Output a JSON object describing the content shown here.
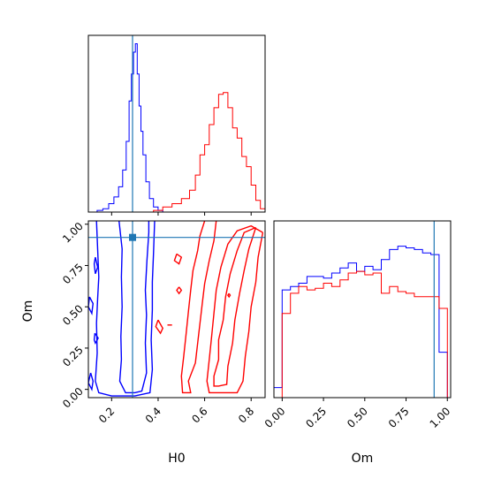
{
  "chart_data": {
    "type": "corner-plot",
    "parameters": [
      "H0",
      "Om"
    ],
    "truth": {
      "H0": 0.29,
      "Om": 0.92,
      "color": "#1f77b4"
    },
    "series_colors": [
      "#0000ff",
      "#ff0000"
    ],
    "axes": {
      "H0": {
        "label": "H0",
        "range": [
          0.1,
          0.86
        ],
        "ticks": [
          "0.2",
          "0.4",
          "0.6",
          "0.8"
        ],
        "tick_values": [
          0.2,
          0.4,
          0.6,
          0.8
        ]
      },
      "Om": {
        "label": "Om",
        "range": [
          -0.05,
          1.02
        ],
        "ticks": [
          "0.00",
          "0.25",
          "0.50",
          "0.75",
          "1.00"
        ],
        "tick_values": [
          0.0,
          0.25,
          0.5,
          0.75,
          1.0
        ]
      }
    },
    "histogram_H0": {
      "series": [
        {
          "color": "#0000ff",
          "bins": [
            {
              "x": 0.15,
              "y": 0.01
            },
            {
              "x": 0.175,
              "y": 0.02
            },
            {
              "x": 0.2,
              "y": 0.05
            },
            {
              "x": 0.22,
              "y": 0.09
            },
            {
              "x": 0.24,
              "y": 0.15
            },
            {
              "x": 0.255,
              "y": 0.25
            },
            {
              "x": 0.27,
              "y": 0.42
            },
            {
              "x": 0.28,
              "y": 0.66
            },
            {
              "x": 0.29,
              "y": 0.82
            },
            {
              "x": 0.298,
              "y": 0.95
            },
            {
              "x": 0.306,
              "y": 1.0
            },
            {
              "x": 0.314,
              "y": 0.82
            },
            {
              "x": 0.322,
              "y": 0.63
            },
            {
              "x": 0.33,
              "y": 0.48
            },
            {
              "x": 0.34,
              "y": 0.34
            },
            {
              "x": 0.355,
              "y": 0.18
            },
            {
              "x": 0.37,
              "y": 0.08
            },
            {
              "x": 0.39,
              "y": 0.03
            },
            {
              "x": 0.41,
              "y": 0.01
            }
          ]
        },
        {
          "color": "#ff0000",
          "bins": [
            {
              "x": 0.4,
              "y": 0.01
            },
            {
              "x": 0.44,
              "y": 0.03
            },
            {
              "x": 0.48,
              "y": 0.05
            },
            {
              "x": 0.52,
              "y": 0.08
            },
            {
              "x": 0.55,
              "y": 0.13
            },
            {
              "x": 0.57,
              "y": 0.22
            },
            {
              "x": 0.59,
              "y": 0.34
            },
            {
              "x": 0.61,
              "y": 0.4
            },
            {
              "x": 0.63,
              "y": 0.52
            },
            {
              "x": 0.65,
              "y": 0.62
            },
            {
              "x": 0.67,
              "y": 0.7
            },
            {
              "x": 0.69,
              "y": 0.71
            },
            {
              "x": 0.71,
              "y": 0.62
            },
            {
              "x": 0.73,
              "y": 0.5
            },
            {
              "x": 0.75,
              "y": 0.44
            },
            {
              "x": 0.77,
              "y": 0.33
            },
            {
              "x": 0.79,
              "y": 0.27
            },
            {
              "x": 0.81,
              "y": 0.16
            },
            {
              "x": 0.83,
              "y": 0.07
            },
            {
              "x": 0.85,
              "y": 0.02
            }
          ]
        }
      ]
    },
    "histogram_Om": {
      "series": [
        {
          "color": "#0000ff",
          "bins": [
            {
              "x": -0.025,
              "y": 0.06
            },
            {
              "x": 0.025,
              "y": 0.64
            },
            {
              "x": 0.075,
              "y": 0.66
            },
            {
              "x": 0.125,
              "y": 0.68
            },
            {
              "x": 0.175,
              "y": 0.72
            },
            {
              "x": 0.225,
              "y": 0.72
            },
            {
              "x": 0.275,
              "y": 0.71
            },
            {
              "x": 0.325,
              "y": 0.74
            },
            {
              "x": 0.375,
              "y": 0.77
            },
            {
              "x": 0.425,
              "y": 0.8
            },
            {
              "x": 0.475,
              "y": 0.75
            },
            {
              "x": 0.525,
              "y": 0.78
            },
            {
              "x": 0.575,
              "y": 0.76
            },
            {
              "x": 0.625,
              "y": 0.82
            },
            {
              "x": 0.675,
              "y": 0.88
            },
            {
              "x": 0.725,
              "y": 0.9
            },
            {
              "x": 0.775,
              "y": 0.89
            },
            {
              "x": 0.825,
              "y": 0.88
            },
            {
              "x": 0.875,
              "y": 0.86
            },
            {
              "x": 0.925,
              "y": 0.85
            },
            {
              "x": 0.975,
              "y": 0.27
            }
          ]
        },
        {
          "color": "#ff0000",
          "bins": [
            {
              "x": 0.025,
              "y": 0.5
            },
            {
              "x": 0.075,
              "y": 0.62
            },
            {
              "x": 0.125,
              "y": 0.66
            },
            {
              "x": 0.175,
              "y": 0.64
            },
            {
              "x": 0.225,
              "y": 0.65
            },
            {
              "x": 0.275,
              "y": 0.68
            },
            {
              "x": 0.325,
              "y": 0.66
            },
            {
              "x": 0.375,
              "y": 0.7
            },
            {
              "x": 0.425,
              "y": 0.74
            },
            {
              "x": 0.475,
              "y": 0.75
            },
            {
              "x": 0.525,
              "y": 0.73
            },
            {
              "x": 0.575,
              "y": 0.74
            },
            {
              "x": 0.625,
              "y": 0.62
            },
            {
              "x": 0.675,
              "y": 0.66
            },
            {
              "x": 0.725,
              "y": 0.63
            },
            {
              "x": 0.775,
              "y": 0.62
            },
            {
              "x": 0.825,
              "y": 0.6
            },
            {
              "x": 0.875,
              "y": 0.6
            },
            {
              "x": 0.925,
              "y": 0.6
            },
            {
              "x": 0.975,
              "y": 0.53
            }
          ]
        }
      ]
    },
    "contours_H0_Om": {
      "series": [
        {
          "color": "#0000ff",
          "levels": [
            [
              [
                0.232,
                1.02
              ],
              [
                0.245,
                0.85
              ],
              [
                0.242,
                0.68
              ],
              [
                0.245,
                0.5
              ],
              [
                0.24,
                0.32
              ],
              [
                0.242,
                0.18
              ],
              [
                0.235,
                0.05
              ],
              [
                0.26,
                -0.02
              ],
              [
                0.3,
                -0.02
              ],
              [
                0.33,
                -0.01
              ],
              [
                0.35,
                0.1
              ],
              [
                0.345,
                0.28
              ],
              [
                0.35,
                0.45
              ],
              [
                0.345,
                0.6
              ],
              [
                0.352,
                0.78
              ],
              [
                0.36,
                0.95
              ],
              [
                0.36,
                1.02
              ]
            ],
            [
              [
                0.135,
                1.02
              ],
              [
                0.14,
                0.85
              ],
              [
                0.145,
                0.68
              ],
              [
                0.14,
                0.55
              ],
              [
                0.135,
                0.4
              ],
              [
                0.138,
                0.22
              ],
              [
                0.13,
                0.05
              ],
              [
                0.145,
                -0.02
              ],
              [
                0.2,
                -0.04
              ],
              [
                0.3,
                -0.04
              ],
              [
                0.365,
                -0.02
              ],
              [
                0.375,
                0.12
              ],
              [
                0.37,
                0.3
              ],
              [
                0.375,
                0.48
              ],
              [
                0.375,
                0.65
              ],
              [
                0.38,
                0.82
              ],
              [
                0.385,
                1.02
              ]
            ]
          ],
          "islands": [
            [
              [
                0.105,
                0.56
              ],
              [
                0.12,
                0.52
              ],
              [
                0.115,
                0.46
              ],
              [
                0.1,
                0.5
              ],
              [
                0.105,
                0.56
              ]
            ],
            [
              [
                0.11,
                0.1
              ],
              [
                0.12,
                0.05
              ],
              [
                0.115,
                0.0
              ],
              [
                0.1,
                0.04
              ],
              [
                0.11,
                0.1
              ]
            ],
            [
              [
                0.13,
                0.8
              ],
              [
                0.14,
                0.74
              ],
              [
                0.13,
                0.7
              ],
              [
                0.125,
                0.76
              ],
              [
                0.13,
                0.8
              ]
            ],
            [
              [
                0.128,
                0.34
              ],
              [
                0.142,
                0.31
              ],
              [
                0.13,
                0.28
              ],
              [
                0.125,
                0.3
              ],
              [
                0.128,
                0.34
              ]
            ]
          ]
        },
        {
          "color": "#ff0000",
          "levels": [
            [
              [
                0.82,
                0.98
              ],
              [
                0.79,
                0.85
              ],
              [
                0.77,
                0.72
              ],
              [
                0.75,
                0.58
              ],
              [
                0.73,
                0.42
              ],
              [
                0.72,
                0.28
              ],
              [
                0.7,
                0.14
              ],
              [
                0.695,
                0.03
              ],
              [
                0.66,
                0.02
              ],
              [
                0.64,
                0.02
              ],
              [
                0.64,
                0.08
              ],
              [
                0.66,
                0.18
              ],
              [
                0.66,
                0.3
              ],
              [
                0.68,
                0.42
              ],
              [
                0.69,
                0.56
              ],
              [
                0.71,
                0.7
              ],
              [
                0.74,
                0.84
              ],
              [
                0.77,
                0.95
              ],
              [
                0.82,
                0.98
              ]
            ],
            [
              [
                0.85,
                0.95
              ],
              [
                0.83,
                0.8
              ],
              [
                0.82,
                0.65
              ],
              [
                0.8,
                0.5
              ],
              [
                0.79,
                0.35
              ],
              [
                0.775,
                0.2
              ],
              [
                0.765,
                0.05
              ],
              [
                0.74,
                -0.02
              ],
              [
                0.62,
                -0.02
              ],
              [
                0.61,
                0.05
              ],
              [
                0.62,
                0.18
              ],
              [
                0.63,
                0.32
              ],
              [
                0.64,
                0.46
              ],
              [
                0.65,
                0.6
              ],
              [
                0.67,
                0.74
              ],
              [
                0.7,
                0.88
              ],
              [
                0.74,
                0.96
              ],
              [
                0.8,
                0.99
              ],
              [
                0.85,
                0.95
              ]
            ]
          ],
          "islands": [
            [
              [
                0.6,
                1.02
              ],
              [
                0.58,
                0.93
              ],
              [
                0.57,
                0.84
              ],
              [
                0.55,
                0.72
              ],
              [
                0.54,
                0.6
              ],
              [
                0.53,
                0.47
              ],
              [
                0.52,
                0.33
              ],
              [
                0.51,
                0.2
              ],
              [
                0.5,
                0.08
              ],
              [
                0.505,
                -0.02
              ],
              [
                0.54,
                -0.02
              ],
              [
                0.53,
                0.05
              ],
              [
                0.56,
                0.16
              ],
              [
                0.57,
                0.28
              ],
              [
                0.58,
                0.4
              ],
              [
                0.59,
                0.52
              ],
              [
                0.6,
                0.64
              ],
              [
                0.62,
                0.78
              ],
              [
                0.64,
                0.9
              ],
              [
                0.65,
                1.02
              ]
            ],
            [
              [
                0.4,
                0.42
              ],
              [
                0.42,
                0.37
              ],
              [
                0.41,
                0.34
              ],
              [
                0.39,
                0.38
              ],
              [
                0.4,
                0.42
              ]
            ],
            [
              [
                0.48,
                0.82
              ],
              [
                0.5,
                0.8
              ],
              [
                0.49,
                0.76
              ],
              [
                0.47,
                0.78
              ],
              [
                0.48,
                0.82
              ]
            ],
            [
              [
                0.49,
                0.62
              ],
              [
                0.5,
                0.6
              ],
              [
                0.49,
                0.58
              ],
              [
                0.48,
                0.6
              ],
              [
                0.49,
                0.62
              ]
            ],
            [
              [
                0.705,
                0.58
              ],
              [
                0.71,
                0.57
              ],
              [
                0.705,
                0.56
              ],
              [
                0.7,
                0.57
              ],
              [
                0.705,
                0.58
              ]
            ],
            [
              [
                0.44,
                0.39
              ],
              [
                0.46,
                0.39
              ]
            ]
          ]
        }
      ]
    }
  }
}
